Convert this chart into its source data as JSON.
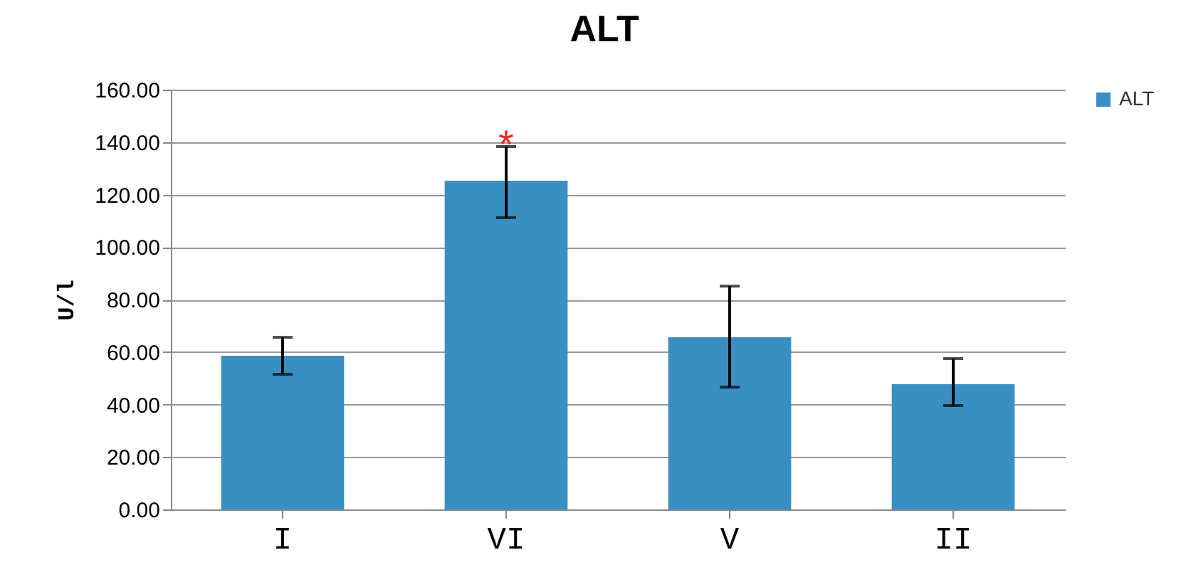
{
  "chart_data": {
    "type": "bar",
    "title": "ALT",
    "ylabel": "U/l",
    "categories": [
      "I",
      "VI",
      "V",
      "II"
    ],
    "series": [
      {
        "name": "ALT",
        "color": "#3a8fc2",
        "values": [
          58.6,
          125.3,
          65.6,
          47.7
        ],
        "errors": [
          [
            51.5,
            65.6
          ],
          [
            111.2,
            138.3
          ],
          [
            46.6,
            85.1
          ],
          [
            39.6,
            57.5
          ]
        ]
      }
    ],
    "ylim": [
      0,
      160
    ],
    "yticks": [
      {
        "value": 0,
        "label": "0.00"
      },
      {
        "value": 20,
        "label": "20.00"
      },
      {
        "value": 40,
        "label": "40.00"
      },
      {
        "value": 60,
        "label": "60.00"
      },
      {
        "value": 80,
        "label": "80.00"
      },
      {
        "value": 100,
        "label": "100.00"
      },
      {
        "value": 120,
        "label": "120.00"
      },
      {
        "value": 140,
        "label": "140.00"
      },
      {
        "value": 160,
        "label": "160.00"
      }
    ],
    "grid": "y",
    "legend": "right",
    "annotations": [
      {
        "text": "*",
        "x": "VI",
        "y": 138.3
      }
    ]
  }
}
